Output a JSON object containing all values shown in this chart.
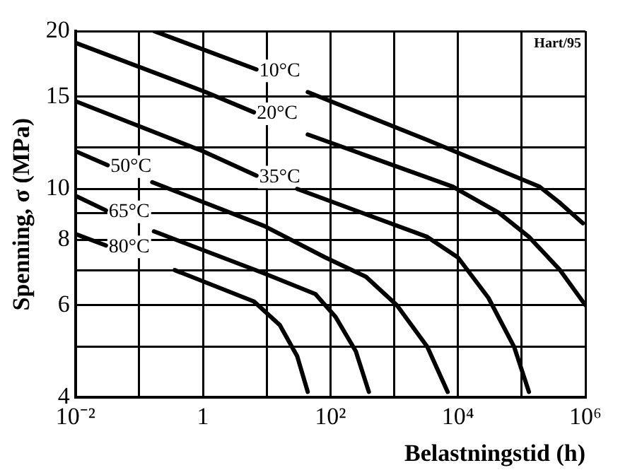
{
  "chart_data": {
    "type": "line",
    "xlabel": "Belastningstid (h)",
    "ylabel": "Spenning, σ (MPa)",
    "log": "xy",
    "xlim": [
      0.01,
      1000000
    ],
    "ylim": [
      4,
      20
    ],
    "xticks": [
      {
        "value": 0.01,
        "label": "10⁻²"
      },
      {
        "value": 0.1,
        "label": null
      },
      1,
      {
        "value": 10,
        "label": null
      },
      {
        "value": 100,
        "label": "10²"
      },
      {
        "value": 1000,
        "label": null
      },
      {
        "value": 10000,
        "label": "10⁴"
      },
      {
        "value": 100000,
        "label": null
      },
      {
        "value": 1000000,
        "label": "10⁶"
      }
    ],
    "yticks": [
      4,
      {
        "value": 5,
        "label": null
      },
      6,
      {
        "value": 7,
        "label": null
      },
      8,
      {
        "value": 9,
        "label": null
      },
      10,
      {
        "value": 12,
        "label": null
      },
      15,
      20
    ],
    "grid": true,
    "legend": false,
    "marker": "none",
    "line_style": "solid",
    "annotations": [
      "Hart/95"
    ],
    "series": [
      {
        "name": "10°C",
        "color": "#000000",
        "x": [
          0.17,
          6.9,
          19,
          44,
          3300,
          190000,
          400000,
          910000
        ],
        "values": [
          20,
          16.9,
          null,
          15.3,
          12.4,
          10.1,
          9.4,
          8.6
        ]
      },
      {
        "name": "20°C",
        "color": "#000000",
        "x": [
          0.01,
          1.1,
          6.3,
          19,
          44,
          8300,
          44000,
          130000,
          400000,
          1000000
        ],
        "values": [
          19,
          15.3,
          14,
          null,
          12.7,
          10.1,
          9,
          8.1,
          7,
          6
        ]
      },
      {
        "name": "35°C",
        "color": "#000000",
        "x": [
          0.01,
          1,
          6.9,
          19,
          30,
          3300,
          10000,
          30000,
          76000,
          130000
        ],
        "values": [
          14.7,
          11.8,
          10.6,
          null,
          10,
          8.1,
          7.4,
          6.2,
          5,
          4.1
        ]
      },
      {
        "name": "50°C",
        "color": "#000000",
        "x": [
          0.01,
          0.032,
          0.09,
          0.16,
          9.1,
          83,
          360,
          1100,
          3300,
          6900
        ],
        "values": [
          11.8,
          11.1,
          null,
          10.3,
          8.5,
          7.4,
          6.8,
          6,
          5,
          4.1
        ]
      },
      {
        "name": "65°C",
        "color": "#000000",
        "x": [
          0.01,
          0.03,
          0.09,
          0.17,
          9.1,
          58,
          120,
          250,
          400
        ],
        "values": [
          9.7,
          9.1,
          null,
          8.3,
          6.9,
          6.3,
          5.7,
          4.9,
          4.1
        ]
      },
      {
        "name": "80°C",
        "color": "#000000",
        "x": [
          0.01,
          0.03,
          0.09,
          0.36,
          6.3,
          16,
          30,
          44
        ],
        "values": [
          8.2,
          7.8,
          null,
          7,
          6.1,
          5.5,
          4.8,
          4.1
        ]
      }
    ]
  }
}
